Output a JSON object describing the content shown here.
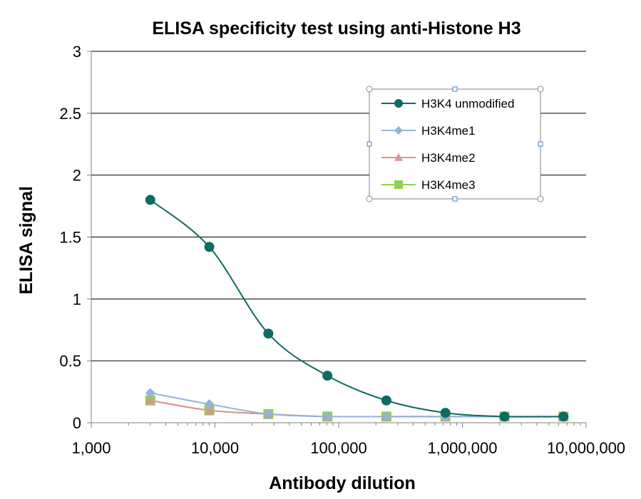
{
  "chart_data": {
    "type": "line",
    "title": "ELISA specificity test using anti-Histone H3",
    "xlabel": "Antibody dilution",
    "ylabel": "ELISA signal",
    "x_scale": "log",
    "xlim": [
      1000,
      10000000
    ],
    "ylim": [
      0,
      3
    ],
    "x_ticks": [
      1000,
      10000,
      100000,
      1000000,
      10000000
    ],
    "x_tick_labels": [
      "1,000",
      "10,000",
      "100,000",
      "1,000,000",
      "10,000,000"
    ],
    "y_ticks": [
      0,
      0.5,
      1,
      1.5,
      2,
      2.5,
      3
    ],
    "y_tick_labels": [
      "0",
      "0.5",
      "1",
      "1.5",
      "2",
      "2.5",
      "3"
    ],
    "grid": "horizontal",
    "legend_position": "top-right",
    "x": [
      3000,
      9000,
      27000,
      81000,
      243000,
      729000,
      2187000,
      6561000
    ],
    "series": [
      {
        "name": "H3K4 unmodified",
        "color": "#0e6b63",
        "marker": "circle",
        "values": [
          1.8,
          1.42,
          0.72,
          0.38,
          0.18,
          0.08,
          0.05,
          0.05
        ]
      },
      {
        "name": "H3K4me1",
        "color": "#95b3d7",
        "marker": "diamond",
        "values": [
          0.24,
          0.15,
          0.07,
          0.05,
          0.05,
          0.05,
          0.05,
          0.05
        ]
      },
      {
        "name": "H3K4me2",
        "color": "#d99594",
        "marker": "triangle",
        "values": [
          0.18,
          0.1,
          0.07,
          0.05,
          0.05,
          0.05,
          0.05,
          0.05
        ]
      },
      {
        "name": "H3K4me3",
        "color": "#92d050",
        "marker": "square",
        "values": [
          0.18,
          0.1,
          0.07,
          0.05,
          0.05,
          0.05,
          0.05,
          0.05
        ]
      }
    ]
  }
}
